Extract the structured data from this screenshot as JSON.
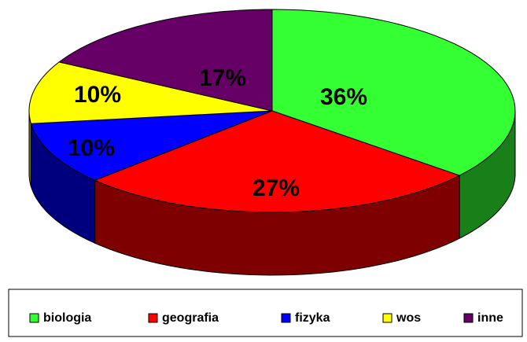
{
  "chart_data": {
    "type": "pie",
    "three_d": true,
    "categories": [
      "biologia",
      "geografia",
      "fizyka",
      "wos",
      "inne"
    ],
    "values": [
      36,
      27,
      10,
      10,
      17
    ],
    "value_labels": [
      "36%",
      "27%",
      "10%",
      "10%",
      "17%"
    ],
    "colors": [
      "#33ff33",
      "#ff0000",
      "#0000ff",
      "#ffff00",
      "#660066"
    ],
    "legend": "bottom"
  }
}
